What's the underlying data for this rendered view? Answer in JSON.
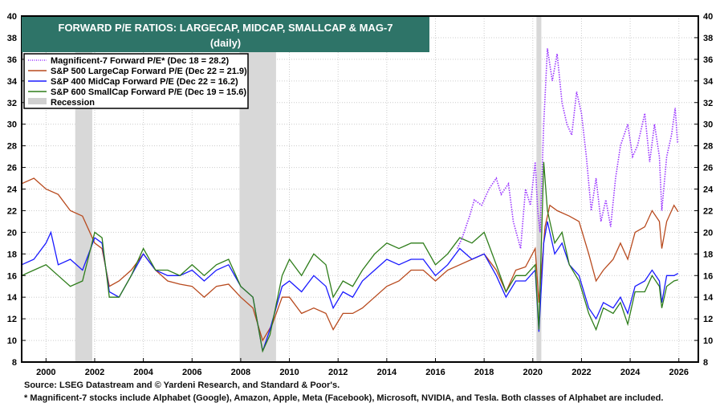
{
  "chart_data": {
    "type": "line",
    "title": "FORWARD P/E RATIOS: LARGECAP, MIDCAP, SMALLCAP & MAG-7",
    "subtitle": "(daily)",
    "xlim": [
      1999,
      2026.8
    ],
    "ylim": [
      8,
      40
    ],
    "yticks": [
      8,
      10,
      12,
      14,
      16,
      18,
      20,
      22,
      24,
      26,
      28,
      30,
      32,
      34,
      36,
      38,
      40
    ],
    "xticks": [
      "2000",
      "2002",
      "2004",
      "2006",
      "2008",
      "2010",
      "2012",
      "2014",
      "2016",
      "2018",
      "2020",
      "2022",
      "2024",
      "2026"
    ],
    "grid": true,
    "legend_position": "top-left",
    "recessions": [
      [
        2001.2,
        2001.9
      ],
      [
        2007.95,
        2009.45
      ],
      [
        2020.15,
        2020.35
      ]
    ],
    "recession_label": "Recession",
    "series": [
      {
        "name": "Magnificent-7 Forward P/E* (Dec 18 = 28.2)",
        "color": "#9933ff",
        "dashed": true,
        "points": [
          [
            2016.9,
            18.5
          ],
          [
            2017.1,
            19.5
          ],
          [
            2017.4,
            21.5
          ],
          [
            2017.6,
            23
          ],
          [
            2017.9,
            22.5
          ],
          [
            2018.2,
            24
          ],
          [
            2018.5,
            25
          ],
          [
            2018.7,
            23.5
          ],
          [
            2019.0,
            24.5
          ],
          [
            2019.2,
            21
          ],
          [
            2019.5,
            18.5
          ],
          [
            2019.7,
            24
          ],
          [
            2019.9,
            22.5
          ],
          [
            2020.1,
            26.5
          ],
          [
            2020.2,
            22
          ],
          [
            2020.3,
            20
          ],
          [
            2020.45,
            30
          ],
          [
            2020.6,
            37
          ],
          [
            2020.8,
            34
          ],
          [
            2021.0,
            36.5
          ],
          [
            2021.2,
            32
          ],
          [
            2021.4,
            30
          ],
          [
            2021.6,
            29
          ],
          [
            2021.8,
            33
          ],
          [
            2022.0,
            31
          ],
          [
            2022.2,
            27
          ],
          [
            2022.4,
            22
          ],
          [
            2022.6,
            25
          ],
          [
            2022.8,
            21
          ],
          [
            2023.0,
            23
          ],
          [
            2023.2,
            20.5
          ],
          [
            2023.4,
            25
          ],
          [
            2023.6,
            28
          ],
          [
            2023.9,
            30
          ],
          [
            2024.1,
            27
          ],
          [
            2024.3,
            28
          ],
          [
            2024.6,
            31
          ],
          [
            2024.8,
            26.5
          ],
          [
            2025.0,
            30
          ],
          [
            2025.2,
            27
          ],
          [
            2025.3,
            22
          ],
          [
            2025.5,
            27
          ],
          [
            2025.7,
            29
          ],
          [
            2025.85,
            31.5
          ],
          [
            2025.95,
            28.2
          ]
        ]
      },
      {
        "name": "S&P 500 LargeCap Forward P/E (Dec 22 = 21.9)",
        "color": "#b84a1e",
        "dashed": false,
        "points": [
          [
            1999.0,
            24.5
          ],
          [
            1999.5,
            25
          ],
          [
            2000.0,
            24
          ],
          [
            2000.5,
            23.5
          ],
          [
            2001.0,
            22
          ],
          [
            2001.5,
            21.5
          ],
          [
            2002.0,
            19
          ],
          [
            2002.3,
            18.5
          ],
          [
            2002.6,
            15
          ],
          [
            2003.0,
            15.5
          ],
          [
            2003.5,
            16.5
          ],
          [
            2004.0,
            18
          ],
          [
            2004.5,
            16.5
          ],
          [
            2005.0,
            15.5
          ],
          [
            2005.5,
            15.2
          ],
          [
            2006.0,
            15
          ],
          [
            2006.5,
            14
          ],
          [
            2007.0,
            15
          ],
          [
            2007.5,
            15.2
          ],
          [
            2008.0,
            14
          ],
          [
            2008.5,
            13
          ],
          [
            2008.9,
            10
          ],
          [
            2009.3,
            11.5
          ],
          [
            2009.7,
            14
          ],
          [
            2010.0,
            14
          ],
          [
            2010.5,
            12.5
          ],
          [
            2011.0,
            13
          ],
          [
            2011.5,
            12.5
          ],
          [
            2011.8,
            11
          ],
          [
            2012.2,
            12.5
          ],
          [
            2012.6,
            12.5
          ],
          [
            2013.0,
            13
          ],
          [
            2013.5,
            14
          ],
          [
            2014.0,
            15
          ],
          [
            2014.5,
            15.5
          ],
          [
            2015.0,
            16.5
          ],
          [
            2015.5,
            16.5
          ],
          [
            2016.0,
            15.5
          ],
          [
            2016.5,
            16.5
          ],
          [
            2017.0,
            17
          ],
          [
            2017.5,
            17.5
          ],
          [
            2018.0,
            18
          ],
          [
            2018.5,
            16.5
          ],
          [
            2018.9,
            14.5
          ],
          [
            2019.3,
            16.5
          ],
          [
            2019.7,
            16.8
          ],
          [
            2020.1,
            18.5
          ],
          [
            2020.25,
            13.5
          ],
          [
            2020.5,
            20.5
          ],
          [
            2020.7,
            22.5
          ],
          [
            2021.0,
            22
          ],
          [
            2021.5,
            21.5
          ],
          [
            2021.9,
            21
          ],
          [
            2022.3,
            18
          ],
          [
            2022.6,
            15.5
          ],
          [
            2022.9,
            16.5
          ],
          [
            2023.3,
            17.5
          ],
          [
            2023.6,
            19
          ],
          [
            2023.9,
            17.5
          ],
          [
            2024.2,
            20
          ],
          [
            2024.6,
            20.5
          ],
          [
            2024.9,
            22
          ],
          [
            2025.2,
            21
          ],
          [
            2025.3,
            18.5
          ],
          [
            2025.5,
            21
          ],
          [
            2025.8,
            22.5
          ],
          [
            2025.97,
            21.9
          ]
        ]
      },
      {
        "name": "S&P 400 MidCap Forward P/E (Dec 22 = 16.2)",
        "color": "#1a1aff",
        "dashed": false,
        "points": [
          [
            1999.0,
            17
          ],
          [
            1999.5,
            17.5
          ],
          [
            2000.0,
            19
          ],
          [
            2000.2,
            20
          ],
          [
            2000.5,
            17
          ],
          [
            2001.0,
            17.5
          ],
          [
            2001.5,
            16.5
          ],
          [
            2002.0,
            19.5
          ],
          [
            2002.3,
            19
          ],
          [
            2002.6,
            14.5
          ],
          [
            2003.0,
            14
          ],
          [
            2003.5,
            16
          ],
          [
            2004.0,
            18
          ],
          [
            2004.5,
            16.5
          ],
          [
            2005.0,
            16
          ],
          [
            2005.5,
            16
          ],
          [
            2006.0,
            16.5
          ],
          [
            2006.5,
            15.5
          ],
          [
            2007.0,
            16.5
          ],
          [
            2007.5,
            17
          ],
          [
            2008.0,
            15
          ],
          [
            2008.5,
            14
          ],
          [
            2008.9,
            9
          ],
          [
            2009.2,
            11
          ],
          [
            2009.7,
            15
          ],
          [
            2010.0,
            15.5
          ],
          [
            2010.5,
            14.5
          ],
          [
            2011.0,
            16
          ],
          [
            2011.5,
            15
          ],
          [
            2011.8,
            13
          ],
          [
            2012.2,
            14.5
          ],
          [
            2012.6,
            14
          ],
          [
            2013.0,
            15.5
          ],
          [
            2013.5,
            16.5
          ],
          [
            2014.0,
            17.5
          ],
          [
            2014.5,
            17
          ],
          [
            2015.0,
            17.5
          ],
          [
            2015.5,
            17.5
          ],
          [
            2016.0,
            16
          ],
          [
            2016.5,
            17
          ],
          [
            2017.0,
            18.5
          ],
          [
            2017.5,
            17.5
          ],
          [
            2018.0,
            18
          ],
          [
            2018.5,
            16
          ],
          [
            2018.9,
            14
          ],
          [
            2019.3,
            15.5
          ],
          [
            2019.7,
            15.5
          ],
          [
            2020.1,
            16.5
          ],
          [
            2020.25,
            10.8
          ],
          [
            2020.45,
            19
          ],
          [
            2020.6,
            21
          ],
          [
            2020.9,
            18
          ],
          [
            2021.2,
            19
          ],
          [
            2021.5,
            17
          ],
          [
            2021.9,
            16
          ],
          [
            2022.3,
            13
          ],
          [
            2022.6,
            12
          ],
          [
            2022.9,
            13.5
          ],
          [
            2023.3,
            13
          ],
          [
            2023.6,
            14
          ],
          [
            2023.9,
            12.5
          ],
          [
            2024.2,
            15
          ],
          [
            2024.6,
            15.5
          ],
          [
            2024.9,
            16.5
          ],
          [
            2025.2,
            15.5
          ],
          [
            2025.3,
            13.5
          ],
          [
            2025.5,
            16
          ],
          [
            2025.8,
            16
          ],
          [
            2025.97,
            16.2
          ]
        ]
      },
      {
        "name": "S&P 600 SmallCap Forward P/E (Dec 19 = 15.6)",
        "color": "#2e7d1a",
        "dashed": false,
        "points": [
          [
            1999.0,
            16
          ],
          [
            1999.5,
            16.5
          ],
          [
            2000.0,
            17
          ],
          [
            2000.5,
            16
          ],
          [
            2001.0,
            15
          ],
          [
            2001.5,
            15.5
          ],
          [
            2002.0,
            20
          ],
          [
            2002.3,
            19.5
          ],
          [
            2002.6,
            14
          ],
          [
            2003.0,
            14
          ],
          [
            2003.5,
            16
          ],
          [
            2004.0,
            18.5
          ],
          [
            2004.5,
            16.5
          ],
          [
            2005.0,
            16.5
          ],
          [
            2005.5,
            16
          ],
          [
            2006.0,
            17
          ],
          [
            2006.5,
            16
          ],
          [
            2007.0,
            17
          ],
          [
            2007.5,
            17.5
          ],
          [
            2008.0,
            15
          ],
          [
            2008.5,
            14
          ],
          [
            2008.9,
            9
          ],
          [
            2009.2,
            10.5
          ],
          [
            2009.7,
            16
          ],
          [
            2010.0,
            17.5
          ],
          [
            2010.5,
            16
          ],
          [
            2011.0,
            18
          ],
          [
            2011.5,
            17
          ],
          [
            2011.8,
            14
          ],
          [
            2012.2,
            15.5
          ],
          [
            2012.6,
            15
          ],
          [
            2013.0,
            16.5
          ],
          [
            2013.5,
            18
          ],
          [
            2014.0,
            19
          ],
          [
            2014.5,
            18.5
          ],
          [
            2015.0,
            19
          ],
          [
            2015.5,
            19
          ],
          [
            2016.0,
            17
          ],
          [
            2016.5,
            18
          ],
          [
            2017.0,
            19.5
          ],
          [
            2017.5,
            19
          ],
          [
            2018.0,
            20
          ],
          [
            2018.5,
            17
          ],
          [
            2018.9,
            14.5
          ],
          [
            2019.3,
            16
          ],
          [
            2019.7,
            16
          ],
          [
            2020.1,
            17
          ],
          [
            2020.25,
            11
          ],
          [
            2020.45,
            26.5
          ],
          [
            2020.6,
            22
          ],
          [
            2020.9,
            19
          ],
          [
            2021.2,
            20
          ],
          [
            2021.5,
            17
          ],
          [
            2021.9,
            15.5
          ],
          [
            2022.3,
            12.5
          ],
          [
            2022.6,
            11
          ],
          [
            2022.9,
            13
          ],
          [
            2023.3,
            12.5
          ],
          [
            2023.6,
            13.5
          ],
          [
            2023.9,
            11.5
          ],
          [
            2024.2,
            14.5
          ],
          [
            2024.6,
            14.5
          ],
          [
            2024.9,
            16
          ],
          [
            2025.2,
            15
          ],
          [
            2025.3,
            13
          ],
          [
            2025.5,
            15
          ],
          [
            2025.8,
            15.5
          ],
          [
            2025.97,
            15.6
          ]
        ]
      }
    ]
  },
  "footer": {
    "source": "Source: LSEG Datastream and © Yardeni Research, and Standard & Poor's.",
    "note": "* Magnificent-7 stocks include Alphabet (Google), Amazon, Apple, Meta (Facebook), Microsoft, NVIDIA, and Tesla. Both classes of Alphabet are included."
  }
}
